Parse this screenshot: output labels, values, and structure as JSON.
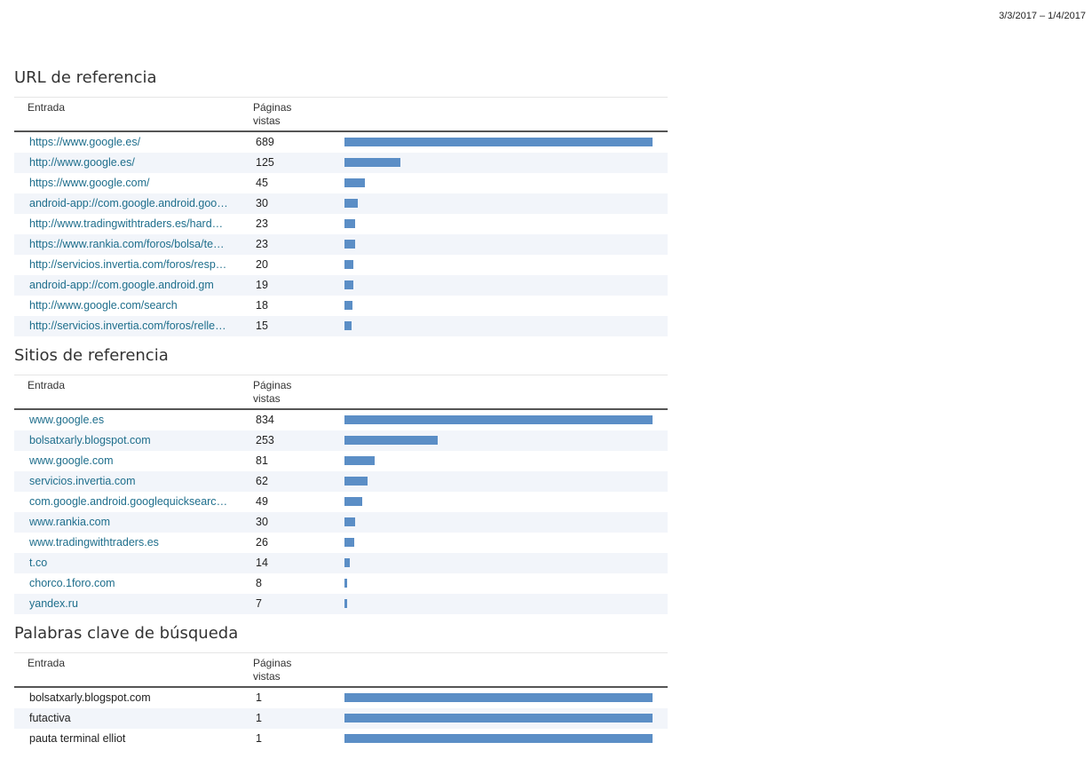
{
  "date_range": "3/3/2017 – 1/4/2017",
  "sections": [
    {
      "title": "URL de referencia",
      "col_entrada": "Entrada",
      "col_pv_line1": "Páginas",
      "col_pv_line2": "vistas",
      "link_style": true,
      "rows": [
        {
          "label": "https://www.google.es/",
          "value": "689",
          "v": 689
        },
        {
          "label": "http://www.google.es/",
          "value": "125",
          "v": 125
        },
        {
          "label": "https://www.google.com/",
          "value": "45",
          "v": 45
        },
        {
          "label": "android-app://com.google.android.googlequicksearchbox",
          "value": "30",
          "v": 30
        },
        {
          "label": "http://www.tradingwithtraders.es/hardware",
          "value": "23",
          "v": 23
        },
        {
          "label": "https://www.rankia.com/foros/bolsa/temas",
          "value": "23",
          "v": 23
        },
        {
          "label": "http://servicios.invertia.com/foros/respuestas",
          "value": "20",
          "v": 20
        },
        {
          "label": "android-app://com.google.android.gm",
          "value": "19",
          "v": 19
        },
        {
          "label": "http://www.google.com/search",
          "value": "18",
          "v": 18
        },
        {
          "label": "http://servicios.invertia.com/foros/rellenar",
          "value": "15",
          "v": 15
        }
      ]
    },
    {
      "title": "Sitios de referencia",
      "col_entrada": "Entrada",
      "col_pv_line1": "Páginas",
      "col_pv_line2": "vistas",
      "link_style": true,
      "rows": [
        {
          "label": "www.google.es",
          "value": "834",
          "v": 834
        },
        {
          "label": "bolsatxarly.blogspot.com",
          "value": "253",
          "v": 253
        },
        {
          "label": "www.google.com",
          "value": "81",
          "v": 81
        },
        {
          "label": "servicios.invertia.com",
          "value": "62",
          "v": 62
        },
        {
          "label": "com.google.android.googlequicksearchbox",
          "value": "49",
          "v": 49
        },
        {
          "label": "www.rankia.com",
          "value": "30",
          "v": 30
        },
        {
          "label": "www.tradingwithtraders.es",
          "value": "26",
          "v": 26
        },
        {
          "label": "t.co",
          "value": "14",
          "v": 14
        },
        {
          "label": "chorco.1foro.com",
          "value": "8",
          "v": 8
        },
        {
          "label": "yandex.ru",
          "value": "7",
          "v": 7
        }
      ]
    },
    {
      "title": "Palabras clave de búsqueda",
      "col_entrada": "Entrada",
      "col_pv_line1": "Páginas",
      "col_pv_line2": "vistas",
      "link_style": false,
      "rows": [
        {
          "label": "bolsatxarly.blogspot.com",
          "value": "1",
          "v": 1
        },
        {
          "label": "futactiva",
          "value": "1",
          "v": 1
        },
        {
          "label": "pauta terminal elliot",
          "value": "1",
          "v": 1
        }
      ]
    }
  ],
  "colors": {
    "bar": "#5b8ec6",
    "link": "#1e6e8c",
    "alt_row": "#f2f5fa"
  }
}
